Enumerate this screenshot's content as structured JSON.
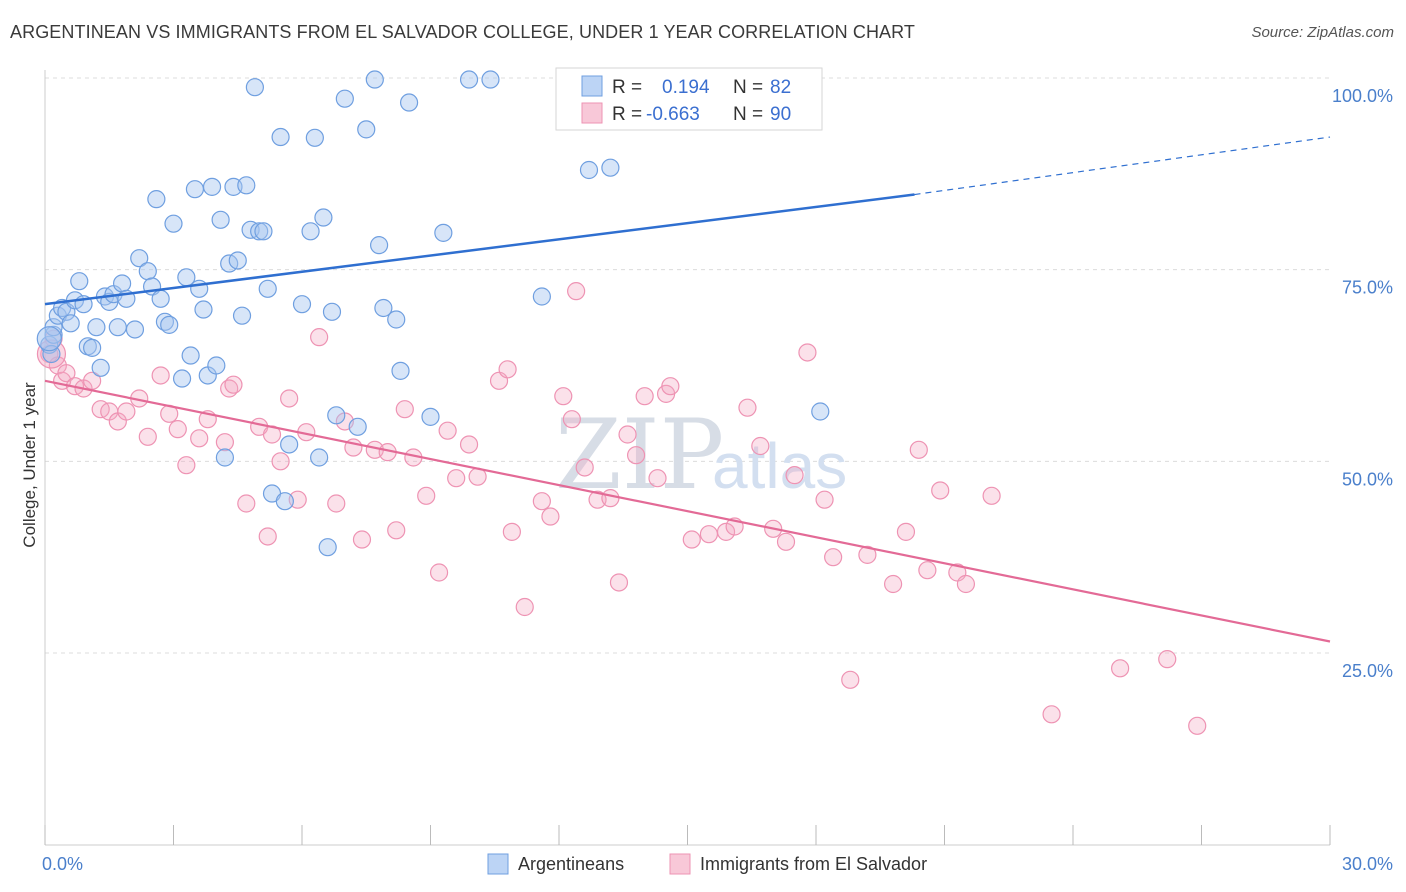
{
  "header": {
    "title": "ARGENTINEAN VS IMMIGRANTS FROM EL SALVADOR COLLEGE, UNDER 1 YEAR CORRELATION CHART",
    "source": "Source: ZipAtlas.com"
  },
  "watermark": {
    "zip": "ZIP",
    "atlas": "atlas"
  },
  "legend": {
    "rows": [
      {
        "r_label": "R =",
        "r_value": "0.194",
        "n_label": "N =",
        "n_value": "82"
      },
      {
        "r_label": "R =",
        "r_value": "-0.663",
        "n_label": "N =",
        "n_value": "90"
      }
    ]
  },
  "bottom_legend": {
    "series1": "Argentineans",
    "series2": "Immigrants from El Salvador"
  },
  "chart_data": {
    "type": "scatter",
    "title": "ARGENTINEAN VS IMMIGRANTS FROM EL SALVADOR COLLEGE, UNDER 1 YEAR CORRELATION CHART",
    "xlabel": "",
    "ylabel": "College, Under 1 year",
    "xlim": [
      0,
      30
    ],
    "ylim": [
      0,
      105
    ],
    "x_tick_labels": [
      "0.0%",
      "30.0%"
    ],
    "y_tick_values": [
      25,
      50,
      75,
      100
    ],
    "y_tick_labels": [
      "25.0%",
      "50.0%",
      "75.0%",
      "100.0%"
    ],
    "grid": "horizontal dashed",
    "legend_position": "top-center",
    "colors": {
      "series1": "#6f9fe0",
      "series2": "#ee93b3",
      "line1": "#2f6fd0",
      "line2": "#e36a96",
      "axis_text": "#4a7fcb"
    },
    "series": [
      {
        "name": "Argentineans",
        "r": 0.194,
        "n": 82,
        "trend": {
          "x0": 0,
          "y0": 70.5,
          "x1": 20.3,
          "y1": 84.8,
          "dashed_to_x": 30,
          "dashed_to_y": 92.3
        },
        "points": [
          [
            0.1,
            65.2
          ],
          [
            0.2,
            66.5
          ],
          [
            0.2,
            67.5
          ],
          [
            0.3,
            69.0
          ],
          [
            0.4,
            70.0
          ],
          [
            0.5,
            69.5
          ],
          [
            0.6,
            68.0
          ],
          [
            0.7,
            71.0
          ],
          [
            0.8,
            73.5
          ],
          [
            0.9,
            70.5
          ],
          [
            1.0,
            65.0
          ],
          [
            1.1,
            64.8
          ],
          [
            1.2,
            67.5
          ],
          [
            1.3,
            62.2
          ],
          [
            1.4,
            71.5
          ],
          [
            1.5,
            70.8
          ],
          [
            1.6,
            71.8
          ],
          [
            1.7,
            67.5
          ],
          [
            1.8,
            73.2
          ],
          [
            1.9,
            71.2
          ],
          [
            2.1,
            67.2
          ],
          [
            2.2,
            76.5
          ],
          [
            2.4,
            74.8
          ],
          [
            2.5,
            72.8
          ],
          [
            2.6,
            84.2
          ],
          [
            2.7,
            71.2
          ],
          [
            2.8,
            68.2
          ],
          [
            2.9,
            67.8
          ],
          [
            3.0,
            81.0
          ],
          [
            3.2,
            60.8
          ],
          [
            3.3,
            74.0
          ],
          [
            3.4,
            63.8
          ],
          [
            3.5,
            85.5
          ],
          [
            3.6,
            72.5
          ],
          [
            3.7,
            69.8
          ],
          [
            3.8,
            61.2
          ],
          [
            3.9,
            85.8
          ],
          [
            4.0,
            62.5
          ],
          [
            4.1,
            81.5
          ],
          [
            4.2,
            50.5
          ],
          [
            4.3,
            75.8
          ],
          [
            4.4,
            85.8
          ],
          [
            4.5,
            76.2
          ],
          [
            4.6,
            69.0
          ],
          [
            4.7,
            86.0
          ],
          [
            4.8,
            80.2
          ],
          [
            4.9,
            98.8
          ],
          [
            5.0,
            80.0
          ],
          [
            5.1,
            80.0
          ],
          [
            5.2,
            72.5
          ],
          [
            5.3,
            45.8
          ],
          [
            5.5,
            92.3
          ],
          [
            5.6,
            44.8
          ],
          [
            5.7,
            52.2
          ],
          [
            6.0,
            70.5
          ],
          [
            6.2,
            80.0
          ],
          [
            6.3,
            92.2
          ],
          [
            6.4,
            50.5
          ],
          [
            6.5,
            81.8
          ],
          [
            6.6,
            38.8
          ],
          [
            6.7,
            69.5
          ],
          [
            6.8,
            56.0
          ],
          [
            7.0,
            97.3
          ],
          [
            7.3,
            54.5
          ],
          [
            7.5,
            93.3
          ],
          [
            7.7,
            99.8
          ],
          [
            7.8,
            78.2
          ],
          [
            7.9,
            70.0
          ],
          [
            8.2,
            68.5
          ],
          [
            8.3,
            61.8
          ],
          [
            8.5,
            96.8
          ],
          [
            9.0,
            55.8
          ],
          [
            9.3,
            79.8
          ],
          [
            9.9,
            99.8
          ],
          [
            10.4,
            99.8
          ],
          [
            11.6,
            71.5
          ],
          [
            12.7,
            88.0
          ],
          [
            13.2,
            88.3
          ],
          [
            18.1,
            56.5
          ],
          [
            0.15,
            64.0
          ]
        ]
      },
      {
        "name": "Immigrants from El Salvador",
        "r": -0.663,
        "n": 90,
        "trend": {
          "x0": 0,
          "y0": 60.5,
          "x1": 30,
          "y1": 26.5
        },
        "points": [
          [
            0.1,
            64.0
          ],
          [
            0.2,
            66.0
          ],
          [
            0.3,
            62.5
          ],
          [
            0.4,
            60.5
          ],
          [
            0.5,
            61.5
          ],
          [
            0.7,
            59.8
          ],
          [
            0.9,
            59.5
          ],
          [
            1.1,
            60.5
          ],
          [
            1.3,
            56.8
          ],
          [
            1.5,
            56.5
          ],
          [
            1.7,
            55.2
          ],
          [
            1.9,
            56.5
          ],
          [
            2.2,
            58.2
          ],
          [
            2.4,
            53.2
          ],
          [
            2.7,
            61.2
          ],
          [
            2.9,
            56.2
          ],
          [
            3.1,
            54.2
          ],
          [
            3.3,
            49.5
          ],
          [
            3.6,
            53.0
          ],
          [
            3.8,
            55.5
          ],
          [
            4.2,
            52.5
          ],
          [
            4.3,
            59.5
          ],
          [
            4.4,
            60.0
          ],
          [
            4.7,
            44.5
          ],
          [
            5.0,
            54.5
          ],
          [
            5.2,
            40.2
          ],
          [
            5.3,
            53.5
          ],
          [
            5.5,
            50.0
          ],
          [
            5.7,
            58.2
          ],
          [
            5.9,
            45.0
          ],
          [
            6.1,
            53.8
          ],
          [
            6.4,
            66.2
          ],
          [
            6.8,
            44.5
          ],
          [
            7.0,
            55.2
          ],
          [
            7.2,
            51.8
          ],
          [
            7.4,
            39.8
          ],
          [
            7.7,
            51.5
          ],
          [
            8.0,
            51.2
          ],
          [
            8.2,
            41.0
          ],
          [
            8.4,
            56.8
          ],
          [
            8.6,
            50.5
          ],
          [
            8.9,
            45.5
          ],
          [
            9.2,
            35.5
          ],
          [
            9.4,
            54.0
          ],
          [
            9.6,
            47.8
          ],
          [
            9.9,
            52.2
          ],
          [
            10.1,
            48.0
          ],
          [
            10.6,
            60.5
          ],
          [
            10.8,
            62.0
          ],
          [
            10.9,
            40.8
          ],
          [
            11.2,
            31.0
          ],
          [
            11.6,
            44.8
          ],
          [
            11.8,
            42.8
          ],
          [
            12.1,
            58.5
          ],
          [
            12.3,
            55.5
          ],
          [
            12.4,
            72.2
          ],
          [
            12.6,
            49.2
          ],
          [
            12.9,
            45.0
          ],
          [
            13.2,
            45.2
          ],
          [
            13.4,
            34.2
          ],
          [
            13.6,
            53.5
          ],
          [
            13.8,
            50.8
          ],
          [
            14.0,
            58.5
          ],
          [
            14.3,
            47.8
          ],
          [
            14.5,
            58.8
          ],
          [
            14.6,
            59.8
          ],
          [
            15.1,
            39.8
          ],
          [
            15.5,
            40.5
          ],
          [
            15.9,
            40.8
          ],
          [
            16.1,
            41.5
          ],
          [
            16.4,
            57.0
          ],
          [
            16.7,
            52.0
          ],
          [
            17.0,
            41.2
          ],
          [
            17.3,
            39.5
          ],
          [
            17.5,
            48.2
          ],
          [
            17.8,
            64.2
          ],
          [
            18.2,
            45.0
          ],
          [
            18.4,
            37.5
          ],
          [
            18.8,
            21.5
          ],
          [
            19.2,
            37.8
          ],
          [
            19.8,
            34.0
          ],
          [
            20.1,
            40.8
          ],
          [
            20.4,
            51.5
          ],
          [
            20.6,
            35.8
          ],
          [
            20.9,
            46.2
          ],
          [
            21.3,
            35.5
          ],
          [
            21.5,
            34.0
          ],
          [
            22.1,
            45.5
          ],
          [
            23.5,
            17.0
          ],
          [
            25.1,
            23.0
          ]
        ],
        "extra_points": [
          [
            26.2,
            24.2
          ],
          [
            26.9,
            15.5
          ]
        ]
      }
    ]
  }
}
